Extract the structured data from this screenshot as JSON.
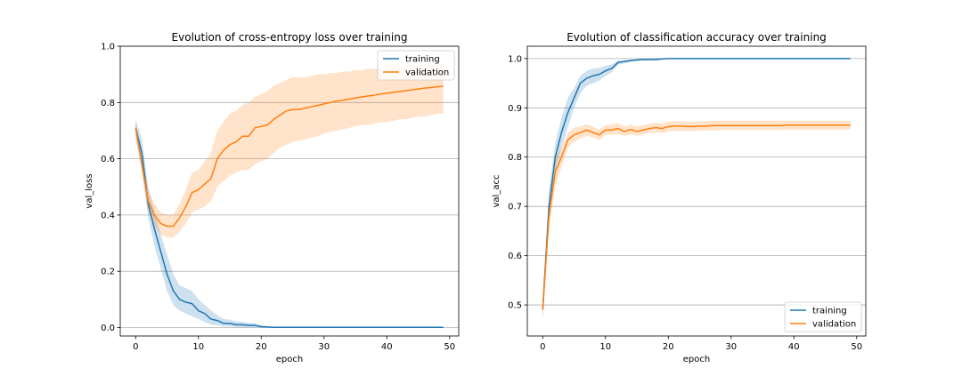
{
  "chart_data": [
    {
      "type": "line",
      "title": "Evolution of cross-entropy loss over training",
      "xlabel": "epoch",
      "ylabel": "val_loss",
      "xlim": [
        -2.45,
        51.45
      ],
      "ylim": [
        -0.03,
        1.0
      ],
      "xticks": [
        0,
        10,
        20,
        30,
        40,
        50
      ],
      "yticks": [
        0.0,
        0.2,
        0.4,
        0.6,
        0.8,
        1.0
      ],
      "ytick_labels": [
        "0.0",
        "0.2",
        "0.4",
        "0.6",
        "0.8",
        "1.0"
      ],
      "grid": "y",
      "legend": "top-right",
      "x": [
        0,
        1,
        2,
        3,
        4,
        5,
        6,
        7,
        8,
        9,
        10,
        11,
        12,
        13,
        14,
        15,
        16,
        17,
        18,
        19,
        20,
        21,
        22,
        23,
        24,
        25,
        26,
        27,
        28,
        29,
        30,
        31,
        32,
        33,
        34,
        35,
        36,
        37,
        38,
        39,
        40,
        41,
        42,
        43,
        44,
        45,
        46,
        47,
        48,
        49
      ],
      "series": [
        {
          "name": "training",
          "color": "#1f77b4",
          "values": [
            0.71,
            0.62,
            0.44,
            0.35,
            0.27,
            0.19,
            0.13,
            0.1,
            0.09,
            0.085,
            0.06,
            0.05,
            0.03,
            0.025,
            0.015,
            0.015,
            0.01,
            0.01,
            0.008,
            0.008,
            0.003,
            0.002,
            0.001,
            0.001,
            0.001,
            0.001,
            0.001,
            0.001,
            0.001,
            0.001,
            0.001,
            0.001,
            0.001,
            0.001,
            0.001,
            0.001,
            0.001,
            0.001,
            0.001,
            0.001,
            0.001,
            0.001,
            0.001,
            0.001,
            0.001,
            0.001,
            0.001,
            0.001,
            0.001,
            0.001
          ],
          "band_lower": [
            0.67,
            0.56,
            0.39,
            0.29,
            0.21,
            0.13,
            0.08,
            0.06,
            0.05,
            0.04,
            0.03,
            0.02,
            0.01,
            0.008,
            0.004,
            0.004,
            0.002,
            0.002,
            0.001,
            0.001,
            0.0,
            0.0,
            0.0,
            0.0,
            0.0,
            0.0,
            0.0,
            0.0,
            0.0,
            0.0,
            0.0,
            0.0,
            0.0,
            0.0,
            0.0,
            0.0,
            0.0,
            0.0,
            0.0,
            0.0,
            0.0,
            0.0,
            0.0,
            0.0,
            0.0,
            0.0,
            0.0,
            0.0,
            0.0,
            0.0
          ],
          "band_upper": [
            0.74,
            0.67,
            0.5,
            0.41,
            0.33,
            0.26,
            0.19,
            0.15,
            0.14,
            0.13,
            0.1,
            0.08,
            0.06,
            0.045,
            0.03,
            0.028,
            0.022,
            0.02,
            0.017,
            0.016,
            0.008,
            0.005,
            0.003,
            0.002,
            0.002,
            0.002,
            0.002,
            0.002,
            0.002,
            0.002,
            0.002,
            0.002,
            0.002,
            0.002,
            0.002,
            0.002,
            0.002,
            0.002,
            0.002,
            0.002,
            0.002,
            0.002,
            0.002,
            0.002,
            0.002,
            0.002,
            0.002,
            0.002,
            0.002,
            0.002
          ]
        },
        {
          "name": "validation",
          "color": "#ff7f0e",
          "values": [
            0.71,
            0.58,
            0.45,
            0.4,
            0.37,
            0.36,
            0.36,
            0.39,
            0.43,
            0.48,
            0.49,
            0.51,
            0.53,
            0.6,
            0.63,
            0.65,
            0.66,
            0.68,
            0.68,
            0.71,
            0.715,
            0.72,
            0.74,
            0.755,
            0.77,
            0.775,
            0.775,
            0.78,
            0.785,
            0.79,
            0.795,
            0.8,
            0.805,
            0.808,
            0.812,
            0.816,
            0.82,
            0.823,
            0.826,
            0.83,
            0.833,
            0.836,
            0.839,
            0.842,
            0.845,
            0.848,
            0.851,
            0.853,
            0.856,
            0.858
          ],
          "band_lower": [
            0.69,
            0.55,
            0.41,
            0.36,
            0.33,
            0.32,
            0.32,
            0.34,
            0.37,
            0.41,
            0.42,
            0.43,
            0.45,
            0.5,
            0.52,
            0.54,
            0.55,
            0.56,
            0.56,
            0.58,
            0.59,
            0.6,
            0.62,
            0.64,
            0.65,
            0.66,
            0.665,
            0.67,
            0.675,
            0.68,
            0.69,
            0.695,
            0.7,
            0.705,
            0.71,
            0.715,
            0.72,
            0.72,
            0.725,
            0.73,
            0.73,
            0.735,
            0.74,
            0.74,
            0.745,
            0.75,
            0.75,
            0.755,
            0.76,
            0.76
          ],
          "band_upper": [
            0.73,
            0.62,
            0.49,
            0.44,
            0.41,
            0.4,
            0.4,
            0.44,
            0.49,
            0.55,
            0.56,
            0.59,
            0.62,
            0.7,
            0.73,
            0.76,
            0.77,
            0.79,
            0.8,
            0.82,
            0.83,
            0.84,
            0.86,
            0.87,
            0.88,
            0.89,
            0.89,
            0.89,
            0.895,
            0.9,
            0.9,
            0.905,
            0.905,
            0.91,
            0.91,
            0.915,
            0.915,
            0.92,
            0.92,
            0.92,
            0.925,
            0.925,
            0.93,
            0.93,
            0.93,
            0.935,
            0.935,
            0.935,
            0.94,
            0.94
          ]
        }
      ]
    },
    {
      "type": "line",
      "title": "Evolution of classification accuracy over training",
      "xlabel": "epoch",
      "ylabel": "val_acc",
      "xlim": [
        -2.45,
        51.45
      ],
      "ylim": [
        0.437,
        1.025
      ],
      "xticks": [
        0,
        10,
        20,
        30,
        40,
        50
      ],
      "yticks": [
        0.5,
        0.6,
        0.7,
        0.8,
        0.9,
        1.0
      ],
      "ytick_labels": [
        "0.5",
        "0.6",
        "0.7",
        "0.8",
        "0.9",
        "1.0"
      ],
      "grid": "y",
      "legend": "bottom-right",
      "x": [
        0,
        1,
        2,
        3,
        4,
        5,
        6,
        7,
        8,
        9,
        10,
        11,
        12,
        13,
        14,
        15,
        16,
        17,
        18,
        19,
        20,
        21,
        22,
        23,
        24,
        25,
        26,
        27,
        28,
        29,
        30,
        31,
        32,
        33,
        34,
        35,
        36,
        37,
        38,
        39,
        40,
        41,
        42,
        43,
        44,
        45,
        46,
        47,
        48,
        49
      ],
      "series": [
        {
          "name": "training",
          "color": "#1f77b4",
          "values": [
            0.49,
            0.7,
            0.8,
            0.85,
            0.89,
            0.92,
            0.95,
            0.96,
            0.965,
            0.968,
            0.975,
            0.98,
            0.992,
            0.994,
            0.996,
            0.997,
            0.998,
            0.998,
            0.998,
            0.999,
            1.0,
            1.0,
            1.0,
            1.0,
            1.0,
            1.0,
            1.0,
            1.0,
            1.0,
            1.0,
            1.0,
            1.0,
            1.0,
            1.0,
            1.0,
            1.0,
            1.0,
            1.0,
            1.0,
            1.0,
            1.0,
            1.0,
            1.0,
            1.0,
            1.0,
            1.0,
            1.0,
            1.0,
            1.0,
            1.0
          ],
          "band_lower": [
            0.47,
            0.67,
            0.77,
            0.82,
            0.86,
            0.9,
            0.93,
            0.945,
            0.95,
            0.955,
            0.965,
            0.972,
            0.988,
            0.99,
            0.993,
            0.995,
            0.996,
            0.996,
            0.996,
            0.998,
            0.999,
            0.999,
            1.0,
            1.0,
            1.0,
            1.0,
            1.0,
            1.0,
            1.0,
            1.0,
            1.0,
            1.0,
            1.0,
            1.0,
            1.0,
            1.0,
            1.0,
            1.0,
            1.0,
            1.0,
            1.0,
            1.0,
            1.0,
            1.0,
            1.0,
            1.0,
            1.0,
            1.0,
            1.0,
            1.0
          ],
          "band_upper": [
            0.51,
            0.73,
            0.83,
            0.88,
            0.92,
            0.94,
            0.965,
            0.975,
            0.98,
            0.981,
            0.985,
            0.988,
            0.996,
            0.997,
            0.998,
            0.999,
            1.0,
            1.0,
            1.0,
            1.0,
            1.0,
            1.0,
            1.0,
            1.0,
            1.0,
            1.0,
            1.0,
            1.0,
            1.0,
            1.0,
            1.0,
            1.0,
            1.0,
            1.0,
            1.0,
            1.0,
            1.0,
            1.0,
            1.0,
            1.0,
            1.0,
            1.0,
            1.0,
            1.0,
            1.0,
            1.0,
            1.0,
            1.0,
            1.0,
            1.0
          ]
        },
        {
          "name": "validation",
          "color": "#ff7f0e",
          "values": [
            0.49,
            0.68,
            0.77,
            0.8,
            0.835,
            0.845,
            0.85,
            0.855,
            0.85,
            0.845,
            0.855,
            0.855,
            0.858,
            0.852,
            0.856,
            0.852,
            0.855,
            0.858,
            0.86,
            0.858,
            0.862,
            0.863,
            0.863,
            0.862,
            0.862,
            0.863,
            0.863,
            0.864,
            0.864,
            0.864,
            0.864,
            0.864,
            0.864,
            0.864,
            0.864,
            0.864,
            0.864,
            0.864,
            0.864,
            0.865,
            0.865,
            0.865,
            0.865,
            0.865,
            0.865,
            0.865,
            0.865,
            0.865,
            0.865,
            0.865
          ],
          "band_lower": [
            0.47,
            0.65,
            0.74,
            0.78,
            0.82,
            0.83,
            0.838,
            0.843,
            0.84,
            0.835,
            0.845,
            0.845,
            0.847,
            0.843,
            0.846,
            0.843,
            0.846,
            0.848,
            0.85,
            0.849,
            0.852,
            0.853,
            0.853,
            0.853,
            0.853,
            0.854,
            0.854,
            0.854,
            0.854,
            0.855,
            0.855,
            0.855,
            0.855,
            0.855,
            0.855,
            0.855,
            0.855,
            0.855,
            0.855,
            0.856,
            0.856,
            0.856,
            0.856,
            0.856,
            0.856,
            0.856,
            0.856,
            0.856,
            0.856,
            0.856
          ],
          "band_upper": [
            0.51,
            0.71,
            0.8,
            0.82,
            0.85,
            0.86,
            0.862,
            0.867,
            0.862,
            0.856,
            0.865,
            0.866,
            0.869,
            0.862,
            0.866,
            0.862,
            0.865,
            0.868,
            0.87,
            0.868,
            0.872,
            0.873,
            0.873,
            0.872,
            0.872,
            0.873,
            0.873,
            0.874,
            0.874,
            0.874,
            0.874,
            0.874,
            0.874,
            0.874,
            0.874,
            0.874,
            0.874,
            0.874,
            0.874,
            0.874,
            0.874,
            0.874,
            0.874,
            0.874,
            0.874,
            0.874,
            0.874,
            0.874,
            0.874,
            0.874
          ]
        }
      ]
    }
  ]
}
